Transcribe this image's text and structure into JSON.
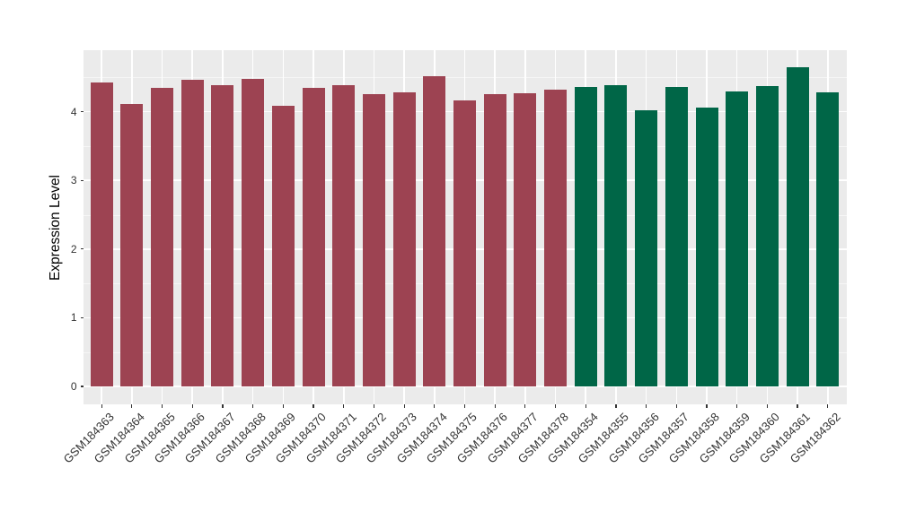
{
  "chart_data": {
    "type": "bar",
    "title": "",
    "xlabel": "",
    "ylabel": "Expression Level",
    "ylim": [
      0,
      4.9
    ],
    "yticks": [
      0,
      1,
      2,
      3,
      4
    ],
    "minor_gridlines_at": [
      0.5,
      1.5,
      2.5,
      3.5,
      4.5
    ],
    "grid": "on",
    "legend_position": "none",
    "panel_background_color": "#EBEBEB",
    "gridline_color": "#ffffff",
    "tick_label_color": "#333333",
    "group_colors": {
      "group1": "#9D4352",
      "group2": "#006647"
    },
    "categories": [
      "GSM184363",
      "GSM184364",
      "GSM184365",
      "GSM184366",
      "GSM184367",
      "GSM184368",
      "GSM184369",
      "GSM184370",
      "GSM184371",
      "GSM184372",
      "GSM184373",
      "GSM184374",
      "GSM184375",
      "GSM184376",
      "GSM184377",
      "GSM184378",
      "GSM184354",
      "GSM184355",
      "GSM184356",
      "GSM184357",
      "GSM184358",
      "GSM184359",
      "GSM184360",
      "GSM184361",
      "GSM184362"
    ],
    "values": [
      4.43,
      4.11,
      4.35,
      4.46,
      4.38,
      4.48,
      4.09,
      4.35,
      4.38,
      4.26,
      4.28,
      4.52,
      4.17,
      4.25,
      4.27,
      4.32,
      4.36,
      4.39,
      4.02,
      4.36,
      4.06,
      4.29,
      4.37,
      4.65,
      4.28
    ],
    "bar_groups": [
      "group1",
      "group1",
      "group1",
      "group1",
      "group1",
      "group1",
      "group1",
      "group1",
      "group1",
      "group1",
      "group1",
      "group1",
      "group1",
      "group1",
      "group1",
      "group1",
      "group2",
      "group2",
      "group2",
      "group2",
      "group2",
      "group2",
      "group2",
      "group2",
      "group2"
    ]
  }
}
